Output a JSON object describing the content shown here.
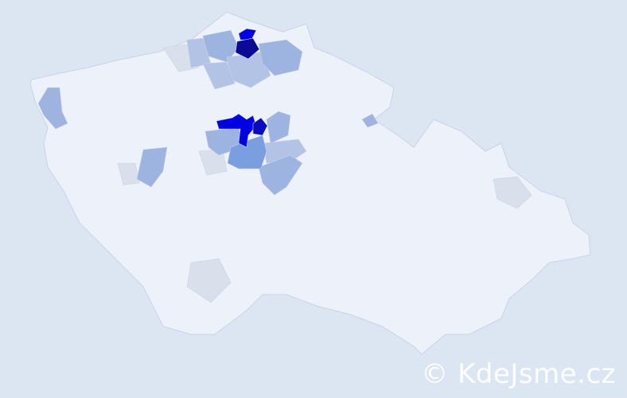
{
  "watermark": "© KdeJsme.cz",
  "colors": {
    "background": "#dce5f2",
    "base": "#edf1f9",
    "border": "#c9d3ea",
    "gray": "#d9dfeb",
    "light": "#b3c3e6",
    "medium_light": "#9db3e0",
    "medium": "#7a9ee0",
    "strong": "#0000e6",
    "darker": "#0a0ac0",
    "darkest": "#0a0a96"
  }
}
